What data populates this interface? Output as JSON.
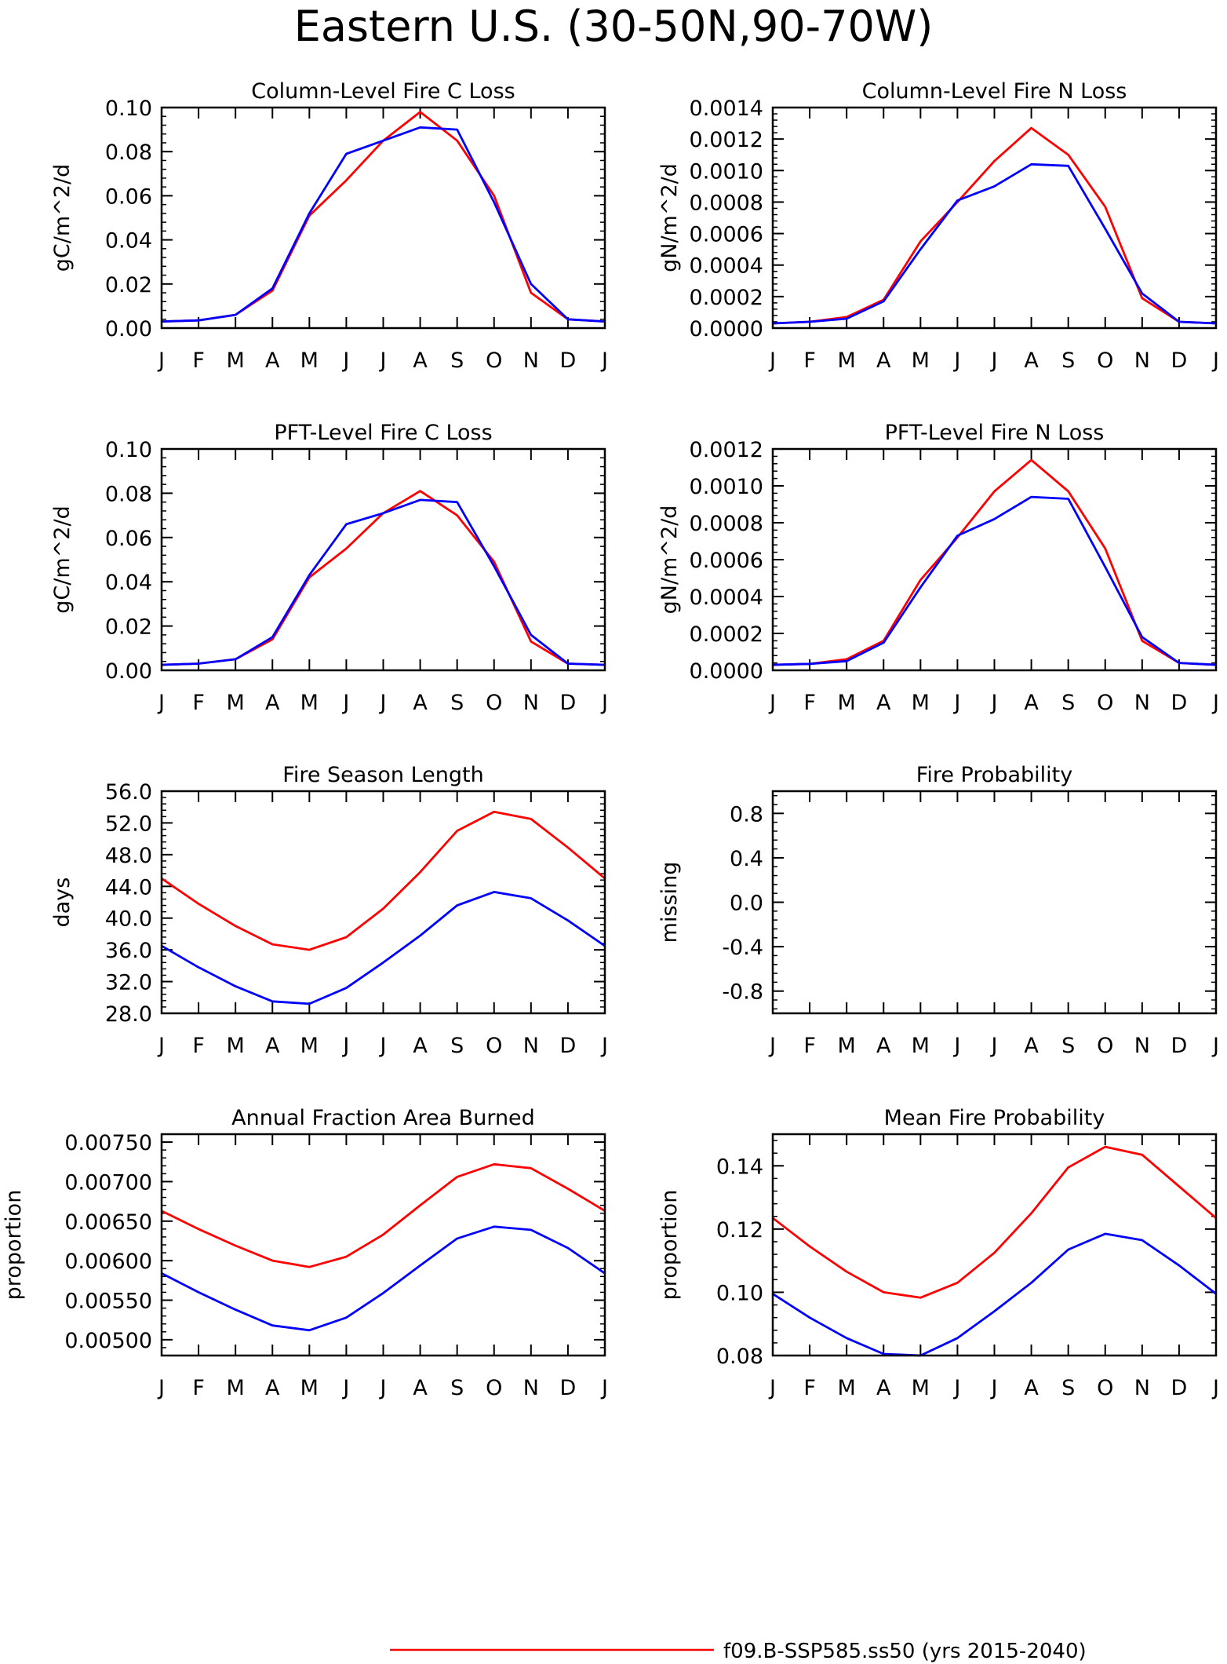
{
  "figure": {
    "title": "Eastern U.S. (30-50N,90-70W)",
    "legend": [
      {
        "label": "f09.B-SSP585.ss50 (yrs 2015-2040)",
        "color": "#ff0000"
      }
    ],
    "series_colors": [
      "#ff0000",
      "#0000ff"
    ]
  },
  "chart_data": [
    {
      "type": "line",
      "title": "Column-Level Fire C Loss",
      "ylabel": "gC/m^2/d",
      "x": [
        "J",
        "F",
        "M",
        "A",
        "M",
        "J",
        "J",
        "A",
        "S",
        "O",
        "N",
        "D",
        "J"
      ],
      "ylim": [
        0,
        0.1
      ],
      "yticks": [
        "0.00",
        "0.02",
        "0.04",
        "0.06",
        "0.08",
        "0.10"
      ],
      "series": [
        {
          "color": "#ff0000",
          "values": [
            0.003,
            0.0035,
            0.006,
            0.017,
            0.051,
            0.067,
            0.085,
            0.098,
            0.085,
            0.06,
            0.016,
            0.004,
            0.003
          ]
        },
        {
          "color": "#0000ff",
          "values": [
            0.003,
            0.0035,
            0.006,
            0.018,
            0.052,
            0.079,
            0.085,
            0.091,
            0.09,
            0.057,
            0.02,
            0.004,
            0.003
          ]
        }
      ]
    },
    {
      "type": "line",
      "title": "Column-Level Fire N Loss",
      "ylabel": "gN/m^2/d",
      "x": [
        "J",
        "F",
        "M",
        "A",
        "M",
        "J",
        "J",
        "A",
        "S",
        "O",
        "N",
        "D",
        "J"
      ],
      "ylim": [
        0,
        0.0014
      ],
      "yticks": [
        "0.0000",
        "0.0002",
        "0.0004",
        "0.0006",
        "0.0008",
        "0.0010",
        "0.0012",
        "0.0014"
      ],
      "series": [
        {
          "color": "#ff0000",
          "values": [
            3e-05,
            4e-05,
            7e-05,
            0.00018,
            0.00055,
            0.0008,
            0.00106,
            0.00127,
            0.0011,
            0.00077,
            0.00019,
            4e-05,
            3e-05
          ]
        },
        {
          "color": "#0000ff",
          "values": [
            3e-05,
            4e-05,
            6e-05,
            0.00017,
            0.0005,
            0.00081,
            0.0009,
            0.00104,
            0.00103,
            0.00063,
            0.00022,
            4e-05,
            3e-05
          ]
        }
      ]
    },
    {
      "type": "line",
      "title": "PFT-Level Fire C Loss",
      "ylabel": "gC/m^2/d",
      "x": [
        "J",
        "F",
        "M",
        "A",
        "M",
        "J",
        "J",
        "A",
        "S",
        "O",
        "N",
        "D",
        "J"
      ],
      "ylim": [
        0,
        0.1
      ],
      "yticks": [
        "0.00",
        "0.02",
        "0.04",
        "0.06",
        "0.08",
        "0.10"
      ],
      "series": [
        {
          "color": "#ff0000",
          "values": [
            0.0025,
            0.003,
            0.005,
            0.014,
            0.042,
            0.055,
            0.071,
            0.081,
            0.07,
            0.049,
            0.013,
            0.003,
            0.0025
          ]
        },
        {
          "color": "#0000ff",
          "values": [
            0.0025,
            0.003,
            0.005,
            0.015,
            0.043,
            0.066,
            0.071,
            0.077,
            0.076,
            0.047,
            0.016,
            0.003,
            0.0025
          ]
        }
      ]
    },
    {
      "type": "line",
      "title": "PFT-Level Fire N Loss",
      "ylabel": "gN/m^2/d",
      "x": [
        "J",
        "F",
        "M",
        "A",
        "M",
        "J",
        "J",
        "A",
        "S",
        "O",
        "N",
        "D",
        "J"
      ],
      "ylim": [
        0,
        0.0012
      ],
      "yticks": [
        "0.0000",
        "0.0002",
        "0.0004",
        "0.0006",
        "0.0008",
        "0.0010",
        "0.0012"
      ],
      "series": [
        {
          "color": "#ff0000",
          "values": [
            3e-05,
            3.5e-05,
            6e-05,
            0.00016,
            0.00049,
            0.00072,
            0.00097,
            0.00114,
            0.00097,
            0.00066,
            0.00016,
            4e-05,
            3e-05
          ]
        },
        {
          "color": "#0000ff",
          "values": [
            3e-05,
            3.5e-05,
            5e-05,
            0.00015,
            0.00045,
            0.00073,
            0.00082,
            0.00094,
            0.00093,
            0.00056,
            0.00018,
            4e-05,
            3e-05
          ]
        }
      ]
    },
    {
      "type": "line",
      "title": "Fire Season Length",
      "ylabel": "days",
      "x": [
        "J",
        "F",
        "M",
        "A",
        "M",
        "J",
        "J",
        "A",
        "S",
        "O",
        "N",
        "D",
        "J"
      ],
      "ylim": [
        28,
        56
      ],
      "yticks": [
        "28.0",
        "32.0",
        "36.0",
        "40.0",
        "44.0",
        "48.0",
        "52.0",
        "56.0"
      ],
      "series": [
        {
          "color": "#ff0000",
          "values": [
            45.0,
            41.8,
            39.0,
            36.7,
            36.0,
            37.6,
            41.2,
            45.8,
            51.0,
            53.4,
            52.5,
            48.9,
            45.0
          ]
        },
        {
          "color": "#0000ff",
          "values": [
            36.5,
            33.8,
            31.4,
            29.5,
            29.2,
            31.2,
            34.4,
            37.8,
            41.6,
            43.3,
            42.5,
            39.7,
            36.5
          ]
        }
      ]
    },
    {
      "type": "line",
      "title": "Fire Probability",
      "ylabel": "missing",
      "x": [
        "J",
        "F",
        "M",
        "A",
        "M",
        "J",
        "J",
        "A",
        "S",
        "O",
        "N",
        "D",
        "J"
      ],
      "ylim": [
        -1.0,
        1.0
      ],
      "yticks": [
        "-0.8",
        "-0.4",
        "0.0",
        "0.4",
        "0.8"
      ],
      "series": []
    },
    {
      "type": "line",
      "title": "Annual Fraction Area Burned",
      "ylabel": "proportion",
      "x": [
        "J",
        "F",
        "M",
        "A",
        "M",
        "J",
        "J",
        "A",
        "S",
        "O",
        "N",
        "D",
        "J"
      ],
      "ylim": [
        0.0048,
        0.0076
      ],
      "yticks": [
        "0.00500",
        "0.00550",
        "0.00600",
        "0.00650",
        "0.00700",
        "0.00750"
      ],
      "series": [
        {
          "color": "#ff0000",
          "values": [
            0.00663,
            0.0064,
            0.00619,
            0.006,
            0.00592,
            0.00605,
            0.00633,
            0.0067,
            0.00706,
            0.00722,
            0.00717,
            0.00691,
            0.00663
          ]
        },
        {
          "color": "#0000ff",
          "values": [
            0.00584,
            0.0056,
            0.00538,
            0.00518,
            0.00512,
            0.00528,
            0.00559,
            0.00594,
            0.00628,
            0.00643,
            0.00639,
            0.00616,
            0.00584
          ]
        }
      ]
    },
    {
      "type": "line",
      "title": "Mean Fire Probability",
      "ylabel": "proportion",
      "x": [
        "J",
        "F",
        "M",
        "A",
        "M",
        "J",
        "J",
        "A",
        "S",
        "O",
        "N",
        "D",
        "J"
      ],
      "ylim": [
        0.08,
        0.15
      ],
      "yticks": [
        "0.08",
        "0.10",
        "0.12",
        "0.14"
      ],
      "series": [
        {
          "color": "#ff0000",
          "values": [
            0.1235,
            0.1145,
            0.1065,
            0.1,
            0.0983,
            0.103,
            0.1125,
            0.125,
            0.1395,
            0.146,
            0.1435,
            0.1335,
            0.1235
          ]
        },
        {
          "color": "#0000ff",
          "values": [
            0.0995,
            0.092,
            0.0855,
            0.0805,
            0.08,
            0.0855,
            0.094,
            0.103,
            0.1135,
            0.1185,
            0.1165,
            0.1085,
            0.0995
          ]
        }
      ]
    }
  ]
}
